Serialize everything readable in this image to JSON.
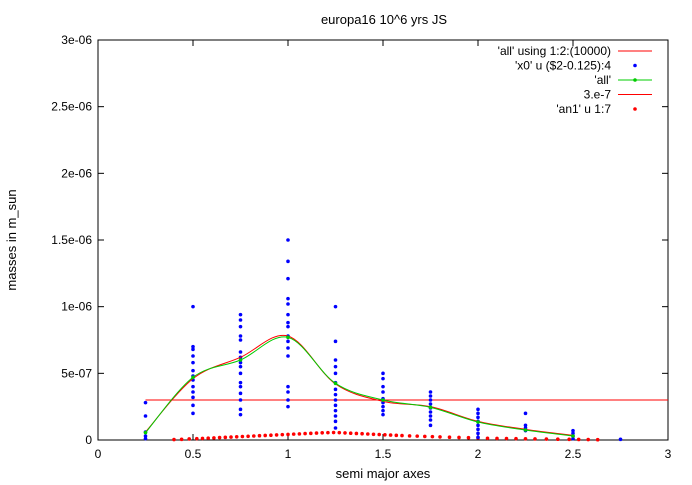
{
  "chart_data": {
    "type": "scatter",
    "title": "europa16 10^6 yrs JS",
    "xlabel": "semi major axes",
    "ylabel": "masses in m_sun",
    "xlim": [
      0,
      3
    ],
    "ylim": [
      0,
      3e-06
    ],
    "grid": false,
    "legend_position": "top-right",
    "x_ticks": [
      {
        "value": 0,
        "label": "0"
      },
      {
        "value": 0.5,
        "label": "0.5"
      },
      {
        "value": 1,
        "label": "1"
      },
      {
        "value": 1.5,
        "label": "1.5"
      },
      {
        "value": 2,
        "label": "2"
      },
      {
        "value": 2.5,
        "label": "2.5"
      },
      {
        "value": 3,
        "label": "3"
      }
    ],
    "y_ticks": [
      {
        "value": 0,
        "label": "0"
      },
      {
        "value": 5e-07,
        "label": "5e-07"
      },
      {
        "value": 1e-06,
        "label": "1e-06"
      },
      {
        "value": 1.5e-06,
        "label": "1.5e-06"
      },
      {
        "value": 2e-06,
        "label": "2e-06"
      },
      {
        "value": 2.5e-06,
        "label": "2.5e-06"
      },
      {
        "value": 3e-06,
        "label": "3e-06"
      }
    ],
    "series": [
      {
        "name": "'all' using 1:2:(10000)",
        "style": "smooth-line",
        "color": "#ff0000",
        "x": [
          0.25,
          0.5,
          0.75,
          1.0,
          1.25,
          1.5,
          1.75,
          2.0,
          2.25,
          2.5
        ],
        "y": [
          6e-08,
          4.6e-07,
          6.2e-07,
          7.8e-07,
          4.2e-07,
          2.9e-07,
          2.5e-07,
          1.4e-07,
          8e-08,
          3.5e-08
        ]
      },
      {
        "name": "'x0' u ($2-0.125):4",
        "style": "points",
        "color": "#0000ff",
        "points": [
          [
            0.25,
            2.8e-07
          ],
          [
            0.25,
            1.8e-07
          ],
          [
            0.25,
            6e-08
          ],
          [
            0.25,
            3e-08
          ],
          [
            0.25,
            1e-08
          ],
          [
            0.5,
            1e-06
          ],
          [
            0.5,
            7e-07
          ],
          [
            0.5,
            6.8e-07
          ],
          [
            0.5,
            6.3e-07
          ],
          [
            0.5,
            5.8e-07
          ],
          [
            0.5,
            5.2e-07
          ],
          [
            0.5,
            4.8e-07
          ],
          [
            0.5,
            4.5e-07
          ],
          [
            0.5,
            4e-07
          ],
          [
            0.5,
            3.6e-07
          ],
          [
            0.5,
            3.2e-07
          ],
          [
            0.5,
            2.6e-07
          ],
          [
            0.5,
            2e-07
          ],
          [
            0.75,
            9.4e-07
          ],
          [
            0.75,
            9e-07
          ],
          [
            0.75,
            8.5e-07
          ],
          [
            0.75,
            7.8e-07
          ],
          [
            0.75,
            7.5e-07
          ],
          [
            0.75,
            6.6e-07
          ],
          [
            0.75,
            6.2e-07
          ],
          [
            0.75,
            5.8e-07
          ],
          [
            0.75,
            5.5e-07
          ],
          [
            0.75,
            5e-07
          ],
          [
            0.75,
            4.3e-07
          ],
          [
            0.75,
            4e-07
          ],
          [
            0.75,
            3.5e-07
          ],
          [
            0.75,
            3e-07
          ],
          [
            0.75,
            2.3e-07
          ],
          [
            0.75,
            1.9e-07
          ],
          [
            1.0,
            1.5e-06
          ],
          [
            1.0,
            1.34e-06
          ],
          [
            1.0,
            1.21e-06
          ],
          [
            1.0,
            1.06e-06
          ],
          [
            1.0,
            1.02e-06
          ],
          [
            1.0,
            9.4e-07
          ],
          [
            1.0,
            8.8e-07
          ],
          [
            1.0,
            8.5e-07
          ],
          [
            1.0,
            7.8e-07
          ],
          [
            1.0,
            7.4e-07
          ],
          [
            1.0,
            6.9e-07
          ],
          [
            1.0,
            6.3e-07
          ],
          [
            1.0,
            4e-07
          ],
          [
            1.0,
            3.6e-07
          ],
          [
            1.0,
            3e-07
          ],
          [
            1.0,
            2.5e-07
          ],
          [
            1.25,
            1e-06
          ],
          [
            1.25,
            7.4e-07
          ],
          [
            1.25,
            6e-07
          ],
          [
            1.25,
            5.5e-07
          ],
          [
            1.25,
            5e-07
          ],
          [
            1.25,
            4.3e-07
          ],
          [
            1.25,
            3.8e-07
          ],
          [
            1.25,
            3.4e-07
          ],
          [
            1.25,
            3e-07
          ],
          [
            1.25,
            2.6e-07
          ],
          [
            1.25,
            2.2e-07
          ],
          [
            1.25,
            1.8e-07
          ],
          [
            1.25,
            1.4e-07
          ],
          [
            1.25,
            9e-08
          ],
          [
            1.5,
            5e-07
          ],
          [
            1.5,
            4.6e-07
          ],
          [
            1.5,
            4e-07
          ],
          [
            1.5,
            3.6e-07
          ],
          [
            1.5,
            3.1e-07
          ],
          [
            1.5,
            2.8e-07
          ],
          [
            1.5,
            2.5e-07
          ],
          [
            1.5,
            2.2e-07
          ],
          [
            1.5,
            1.9e-07
          ],
          [
            1.75,
            3.6e-07
          ],
          [
            1.75,
            3.3e-07
          ],
          [
            1.75,
            3e-07
          ],
          [
            1.75,
            2.7e-07
          ],
          [
            1.75,
            2.4e-07
          ],
          [
            1.75,
            2.1e-07
          ],
          [
            1.75,
            1.8e-07
          ],
          [
            1.75,
            1.5e-07
          ],
          [
            1.75,
            1.1e-07
          ],
          [
            2.0,
            2.3e-07
          ],
          [
            2.0,
            2e-07
          ],
          [
            2.0,
            1.7e-07
          ],
          [
            2.0,
            1.4e-07
          ],
          [
            2.0,
            1.1e-07
          ],
          [
            2.0,
            8e-08
          ],
          [
            2.0,
            5e-08
          ],
          [
            2.0,
            2e-08
          ],
          [
            2.25,
            2e-07
          ],
          [
            2.25,
            1.1e-07
          ],
          [
            2.25,
            9e-08
          ],
          [
            2.25,
            7e-08
          ],
          [
            2.5,
            7e-08
          ],
          [
            2.5,
            5e-08
          ],
          [
            2.5,
            3e-08
          ],
          [
            2.5,
            1e-08
          ],
          [
            2.75,
            5e-09
          ]
        ]
      },
      {
        "name": "'all'",
        "style": "linepoints",
        "color": "#00cc00",
        "x": [
          0.25,
          0.5,
          0.75,
          1.0,
          1.25,
          1.5,
          1.75,
          2.0,
          2.25,
          2.5
        ],
        "y": [
          5.5e-08,
          4.7e-07,
          6e-07,
          7.7e-07,
          4.25e-07,
          3e-07,
          2.45e-07,
          1.35e-07,
          7.5e-08,
          3e-08
        ]
      },
      {
        "name": "3.e-7",
        "style": "constant-line",
        "color": "#ff0000",
        "x": [
          0.25,
          3.0
        ],
        "y": [
          3e-07,
          3e-07
        ]
      },
      {
        "name": "'an1' u 1:7",
        "style": "points",
        "color": "#ff0000",
        "x": [
          0.4,
          0.44,
          0.48,
          0.52,
          0.55,
          0.58,
          0.61,
          0.64,
          0.67,
          0.7,
          0.73,
          0.76,
          0.79,
          0.82,
          0.85,
          0.88,
          0.91,
          0.94,
          0.97,
          1.0,
          1.03,
          1.06,
          1.09,
          1.12,
          1.15,
          1.18,
          1.21,
          1.24,
          1.27,
          1.3,
          1.33,
          1.36,
          1.39,
          1.42,
          1.45,
          1.48,
          1.51,
          1.54,
          1.57,
          1.6,
          1.64,
          1.68,
          1.72,
          1.76,
          1.8,
          1.85,
          1.9,
          1.95,
          2.0,
          2.05,
          2.1,
          2.15,
          2.2,
          2.25,
          2.3,
          2.36,
          2.42,
          2.48,
          2.53,
          2.58,
          2.63
        ],
        "y": [
          3e-09,
          5e-09,
          8e-09,
          1e-08,
          1.2e-08,
          1.4e-08,
          1.6e-08,
          1.8e-08,
          2e-08,
          2.2e-08,
          2.4e-08,
          2.6e-08,
          2.8e-08,
          3e-08,
          3.2e-08,
          3.4e-08,
          3.6e-08,
          3.8e-08,
          4e-08,
          4.2e-08,
          4.4e-08,
          4.6e-08,
          4.8e-08,
          5e-08,
          5.2e-08,
          5.4e-08,
          5.5e-08,
          5.6e-08,
          5.5e-08,
          5.3e-08,
          5.1e-08,
          4.9e-08,
          4.7e-08,
          4.5e-08,
          4.3e-08,
          4.1e-08,
          3.9e-08,
          3.7e-08,
          3.5e-08,
          3.3e-08,
          3.1e-08,
          2.9e-08,
          2.7e-08,
          2.5e-08,
          2.3e-08,
          2.1e-08,
          1.9e-08,
          1.7e-08,
          1.5e-08,
          1.3e-08,
          1.2e-08,
          1.1e-08,
          1e-08,
          9e-09,
          8e-09,
          7e-09,
          6e-09,
          5e-09,
          4e-09,
          3e-09,
          2e-09
        ]
      }
    ]
  }
}
